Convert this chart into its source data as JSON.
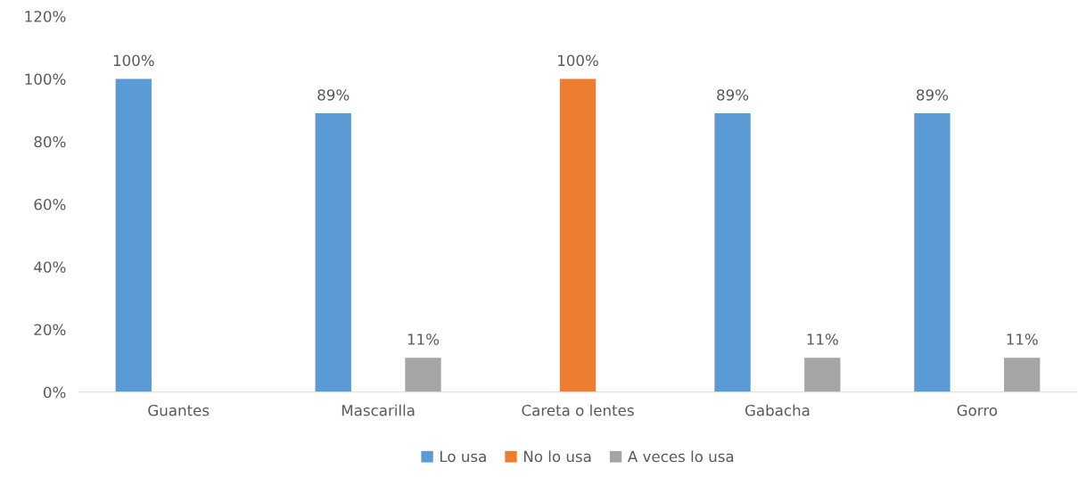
{
  "chart_data": {
    "type": "bar",
    "categories": [
      "Guantes",
      "Mascarilla",
      "Careta o lentes",
      "Gabacha",
      "Gorro"
    ],
    "series": [
      {
        "name": "Lo usa",
        "color": "#5b9bd5",
        "values": [
          100,
          89,
          null,
          89,
          89
        ],
        "value_labels": [
          "100%",
          "89%",
          null,
          "89%",
          "89%"
        ]
      },
      {
        "name": "No lo usa",
        "color": "#ed7d31",
        "values": [
          null,
          null,
          100,
          null,
          null
        ],
        "value_labels": [
          null,
          null,
          "100%",
          null,
          null
        ]
      },
      {
        "name": "A veces lo usa",
        "color": "#a5a5a5",
        "values": [
          null,
          11,
          null,
          11,
          11
        ],
        "value_labels": [
          null,
          "11%",
          null,
          "11%",
          "11%"
        ]
      }
    ],
    "ylim": [
      0,
      120
    ],
    "yticks": [
      {
        "value": 0,
        "label": "0%"
      },
      {
        "value": 20,
        "label": "20%"
      },
      {
        "value": 40,
        "label": "40%"
      },
      {
        "value": 60,
        "label": "60%"
      },
      {
        "value": 80,
        "label": "80%"
      },
      {
        "value": 100,
        "label": "100%"
      },
      {
        "value": 120,
        "label": "120%"
      }
    ],
    "grid": false,
    "legend": "bottom"
  }
}
